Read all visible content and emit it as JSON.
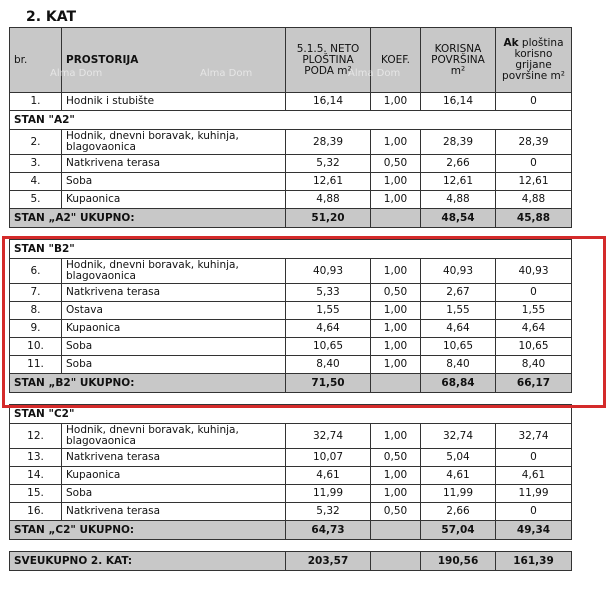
{
  "title": "2.  KAT",
  "watermark": "Alma Dom",
  "headers": {
    "br": "br.",
    "prostorija": "PROSTORIJA",
    "neto": "5.1.5. NETO PLOŠTINA PODA m²",
    "koef": "KOEF.",
    "korisna": "KORISNA POVRŠINA m²",
    "ak_bold": "Ak",
    "ak": " ploština korisno grijane površine m²"
  },
  "rows": [
    {
      "type": "row",
      "br": "1.",
      "name": "Hodnik i stubište",
      "neto": "16,14",
      "koef": "1,00",
      "korisna": "16,14",
      "ak": "0"
    },
    {
      "type": "sec",
      "name": "STAN \"A2\""
    },
    {
      "type": "row2",
      "br": "2.",
      "name": "Hodnik, dnevni boravak, kuhinja, blagovaonica",
      "neto": "28,39",
      "koef": "1,00",
      "korisna": "28,39",
      "ak": "28,39"
    },
    {
      "type": "row",
      "br": "3.",
      "name": "Natkrivena terasa",
      "neto": "5,32",
      "koef": "0,50",
      "korisna": "2,66",
      "ak": "0"
    },
    {
      "type": "row",
      "br": "4.",
      "name": "Soba",
      "neto": "12,61",
      "koef": "1,00",
      "korisna": "12,61",
      "ak": "12,61"
    },
    {
      "type": "row",
      "br": "5.",
      "name": "Kupaonica",
      "neto": "4,88",
      "koef": "1,00",
      "korisna": "4,88",
      "ak": "4,88"
    },
    {
      "type": "tot",
      "name": "STAN „A2\" UKUPNO:",
      "neto": "51,20",
      "koef": "",
      "korisna": "48,54",
      "ak": "45,88"
    },
    {
      "type": "sp"
    },
    {
      "type": "sec",
      "name": "STAN \"B2\""
    },
    {
      "type": "row2",
      "br": "6.",
      "name": "Hodnik, dnevni boravak, kuhinja, blagovaonica",
      "neto": "40,93",
      "koef": "1,00",
      "korisna": "40,93",
      "ak": "40,93"
    },
    {
      "type": "row",
      "br": "7.",
      "name": "Natkrivena terasa",
      "neto": "5,33",
      "koef": "0,50",
      "korisna": "2,67",
      "ak": "0"
    },
    {
      "type": "row",
      "br": "8.",
      "name": "Ostava",
      "neto": "1,55",
      "koef": "1,00",
      "korisna": "1,55",
      "ak": "1,55"
    },
    {
      "type": "row",
      "br": "9.",
      "name": "Kupaonica",
      "neto": "4,64",
      "koef": "1,00",
      "korisna": "4,64",
      "ak": "4,64"
    },
    {
      "type": "row",
      "br": "10.",
      "name": "Soba",
      "neto": "10,65",
      "koef": "1,00",
      "korisna": "10,65",
      "ak": "10,65"
    },
    {
      "type": "row",
      "br": "11.",
      "name": "Soba",
      "neto": "8,40",
      "koef": "1,00",
      "korisna": "8,40",
      "ak": "8,40"
    },
    {
      "type": "tot",
      "name": "STAN „B2\" UKUPNO:",
      "neto": "71,50",
      "koef": "",
      "korisna": "68,84",
      "ak": "66,17"
    },
    {
      "type": "sp"
    },
    {
      "type": "sec",
      "name": "STAN \"C2\""
    },
    {
      "type": "row2",
      "br": "12.",
      "name": "Hodnik, dnevni boravak, kuhinja, blagovaonica",
      "neto": "32,74",
      "koef": "1,00",
      "korisna": "32,74",
      "ak": "32,74"
    },
    {
      "type": "row",
      "br": "13.",
      "name": "Natkrivena terasa",
      "neto": "10,07",
      "koef": "0,50",
      "korisna": "5,04",
      "ak": "0"
    },
    {
      "type": "row",
      "br": "14.",
      "name": "Kupaonica",
      "neto": "4,61",
      "koef": "1,00",
      "korisna": "4,61",
      "ak": "4,61"
    },
    {
      "type": "row",
      "br": "15.",
      "name": "Soba",
      "neto": "11,99",
      "koef": "1,00",
      "korisna": "11,99",
      "ak": "11,99"
    },
    {
      "type": "row",
      "br": "16.",
      "name": "Natkrivena terasa",
      "neto": "5,32",
      "koef": "0,50",
      "korisna": "2,66",
      "ak": "0"
    },
    {
      "type": "tot",
      "name": "STAN „C2\" UKUPNO:",
      "neto": "64,73",
      "koef": "",
      "korisna": "57,04",
      "ak": "49,34"
    },
    {
      "type": "sp"
    },
    {
      "type": "tot",
      "name": "SVEUKUPNO 2. KAT:",
      "neto": "203,57",
      "koef": "",
      "korisna": "190,56",
      "ak": "161,39"
    }
  ],
  "highlight_color": "#d42a2a"
}
